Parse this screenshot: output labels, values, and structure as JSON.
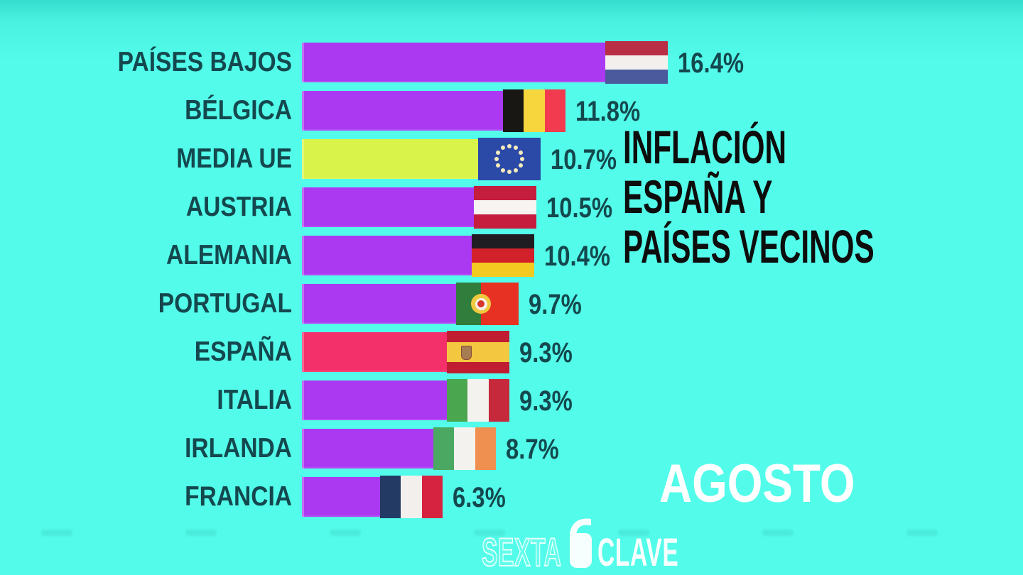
{
  "meta": {
    "program": "SEXTA CLAVE"
  },
  "background": {
    "top": "#35ddcf",
    "main": "#53fcea"
  },
  "title": {
    "lines": [
      "INFLACIÓN",
      "ESPAÑA Y",
      "PAÍSES VECINOS"
    ],
    "color": "#0d0d0d"
  },
  "period_label": "AGOSTO",
  "logo": {
    "left_word": "SEXTA",
    "right_word": "CLAVE",
    "glyph": "lasexta-6-icon"
  },
  "colors": {
    "bar_default": "#ab39f2",
    "bar_eu_average": "#d9f34a",
    "bar_spain": "#f4306a",
    "label_text": "#14484e"
  },
  "chart_data": {
    "type": "bar",
    "orientation": "horizontal",
    "title": "INFLACIÓN ESPAÑA Y PAÍSES VECINOS",
    "period": "AGOSTO",
    "unit": "%",
    "xlim": [
      0,
      16.4
    ],
    "grid": false,
    "legend": "none",
    "categories": [
      "PAÍSES BAJOS",
      "BÉLGICA",
      "MEDIA UE",
      "AUSTRIA",
      "ALEMANIA",
      "PORTUGAL",
      "ESPAÑA",
      "ITALIA",
      "IRLANDA",
      "FRANCIA"
    ],
    "values": [
      16.4,
      11.8,
      10.7,
      10.5,
      10.4,
      9.7,
      9.3,
      9.3,
      8.7,
      6.3
    ],
    "value_labels": [
      "16.4%",
      "11.8%",
      "10.7%",
      "10.5%",
      "10.4%",
      "9.7%",
      "9.3%",
      "9.3%",
      "8.7%",
      "6.3%"
    ],
    "rows": [
      {
        "label": "PAÍSES BAJOS",
        "value": 16.4,
        "display": "16.4%",
        "color": "#ab39f2",
        "flag": "nl"
      },
      {
        "label": "BÉLGICA",
        "value": 11.8,
        "display": "11.8%",
        "color": "#ab39f2",
        "flag": "be"
      },
      {
        "label": "MEDIA UE",
        "value": 10.7,
        "display": "10.7%",
        "color": "#d9f34a",
        "flag": "eu"
      },
      {
        "label": "AUSTRIA",
        "value": 10.5,
        "display": "10.5%",
        "color": "#ab39f2",
        "flag": "at"
      },
      {
        "label": "ALEMANIA",
        "value": 10.4,
        "display": "10.4%",
        "color": "#ab39f2",
        "flag": "de"
      },
      {
        "label": "PORTUGAL",
        "value": 9.7,
        "display": "9.7%",
        "color": "#ab39f2",
        "flag": "pt"
      },
      {
        "label": "ESPAÑA",
        "value": 9.3,
        "display": "9.3%",
        "color": "#f4306a",
        "flag": "es"
      },
      {
        "label": "ITALIA",
        "value": 9.3,
        "display": "9.3%",
        "color": "#ab39f2",
        "flag": "it"
      },
      {
        "label": "IRLANDA",
        "value": 8.7,
        "display": "8.7%",
        "color": "#ab39f2",
        "flag": "ie"
      },
      {
        "label": "FRANCIA",
        "value": 6.3,
        "display": "6.3%",
        "color": "#ab39f2",
        "flag": "fr"
      }
    ],
    "flags": {
      "nl": {
        "name": "netherlands-flag-icon",
        "dir": "h",
        "stripes": [
          "#b92e44",
          "#f3efec",
          "#4a5a9d"
        ]
      },
      "be": {
        "name": "belgium-flag-icon",
        "dir": "v",
        "stripes": [
          "#191714",
          "#f6d53d",
          "#f23b4e"
        ]
      },
      "eu": {
        "name": "eu-flag-icon",
        "dir": "v",
        "stripes": [
          "#2b4aa8"
        ],
        "emblem": "eu-stars"
      },
      "at": {
        "name": "austria-flag-icon",
        "dir": "h",
        "stripes": [
          "#c51d3d",
          "#f7f4f2",
          "#c51d3d"
        ]
      },
      "de": {
        "name": "germany-flag-icon",
        "dir": "h",
        "stripes": [
          "#201d22",
          "#d2212b",
          "#f3ca20"
        ]
      },
      "pt": {
        "name": "portugal-flag-icon",
        "dir": "v",
        "stripes": [
          "#317d3c",
          "#e73122"
        ],
        "sizes": [
          40,
          60
        ],
        "emblem": "pt-shield"
      },
      "es": {
        "name": "spain-flag-icon",
        "dir": "h",
        "stripes": [
          "#c01d33",
          "#f3c73f",
          "#c01d33"
        ],
        "sizes": [
          26,
          48,
          26
        ],
        "emblem": "es-arms"
      },
      "it": {
        "name": "italy-flag-icon",
        "dir": "v",
        "stripes": [
          "#4aa64f",
          "#f4f2ee",
          "#c6293c"
        ]
      },
      "ie": {
        "name": "ireland-flag-icon",
        "dir": "v",
        "stripes": [
          "#4ba862",
          "#f4f2ee",
          "#f09050"
        ]
      },
      "fr": {
        "name": "france-flag-icon",
        "dir": "v",
        "stripes": [
          "#233a64",
          "#f3efec",
          "#d62440"
        ]
      }
    }
  }
}
